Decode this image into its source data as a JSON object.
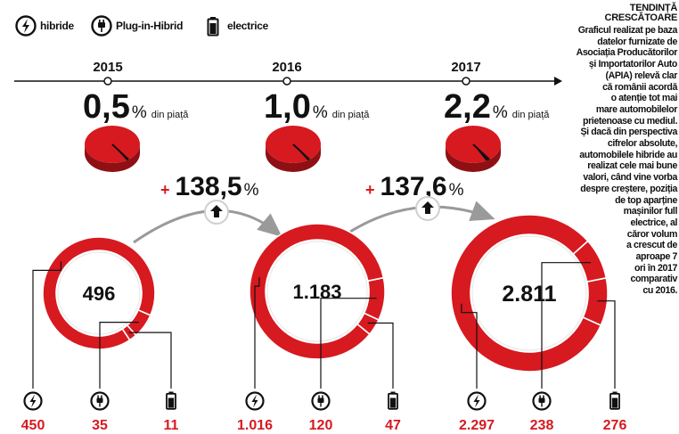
{
  "legend": [
    {
      "icon": "lightning-icon",
      "label": "hibride"
    },
    {
      "icon": "plug-icon",
      "label": "Plug-in-Hibrid"
    },
    {
      "icon": "battery-icon",
      "label": "electrice"
    }
  ],
  "sidebar": {
    "title_lines": [
      "TENDINȚĂ",
      "CRESCĂTOARE"
    ],
    "text_lines": [
      "Graficul realizat pe baza",
      "datelor furnizate de",
      "Asociația Producătorilor",
      "și Importatorilor Auto",
      "(APIA) relevă clar",
      "că românii acordă",
      "o atenție tot mai",
      "mare automobilelor",
      "prietenoase cu mediul.",
      "Și dacă din perspectiva",
      "cifrelor absolute,",
      "automobilele hibride au",
      "realizat cele mai bune",
      "valori, când vine vorba",
      "despre creștere, poziția",
      "de top aparține",
      "mașinilor full",
      "electrice,  al",
      "căror volum",
      "a crescut de",
      "aproape 7",
      "ori în 2017",
      "comparativ",
      "cu 2016."
    ]
  },
  "colors": {
    "red": "#d71920",
    "dark": "#111111",
    "gray": "#9a9a9a"
  },
  "chart_data": {
    "type": "pie",
    "years": [
      "2015",
      "2016",
      "2017"
    ],
    "market_share": [
      {
        "year": "2015",
        "value_label": "0,5",
        "value": 0.5,
        "unit": "%",
        "suffix": "din piață"
      },
      {
        "year": "2016",
        "value_label": "1,0",
        "value": 1.0,
        "unit": "%",
        "suffix": "din piață"
      },
      {
        "year": "2017",
        "value_label": "2,2",
        "value": 2.2,
        "unit": "%",
        "suffix": "din piață"
      }
    ],
    "growth": [
      {
        "sign": "+",
        "value_label": "138,5",
        "unit": "%"
      },
      {
        "sign": "+",
        "value_label": "137,6",
        "unit": "%"
      }
    ],
    "totals": [
      {
        "year": "2015",
        "label": "496",
        "value": 496
      },
      {
        "year": "2016",
        "label": "1.183",
        "value": 1183
      },
      {
        "year": "2017",
        "label": "2.811",
        "value": 2811
      }
    ],
    "breakdown": [
      {
        "year": "2015",
        "hibride": 450,
        "plugin": 35,
        "electrice": 11,
        "labels": [
          "450",
          "35",
          "11"
        ]
      },
      {
        "year": "2016",
        "hibride": 1016,
        "plugin": 120,
        "electrice": 47,
        "labels": [
          "1.016",
          "120",
          "47"
        ]
      },
      {
        "year": "2017",
        "hibride": 2297,
        "plugin": 238,
        "electrice": 276,
        "labels": [
          "2.297",
          "238",
          "276"
        ]
      }
    ]
  }
}
